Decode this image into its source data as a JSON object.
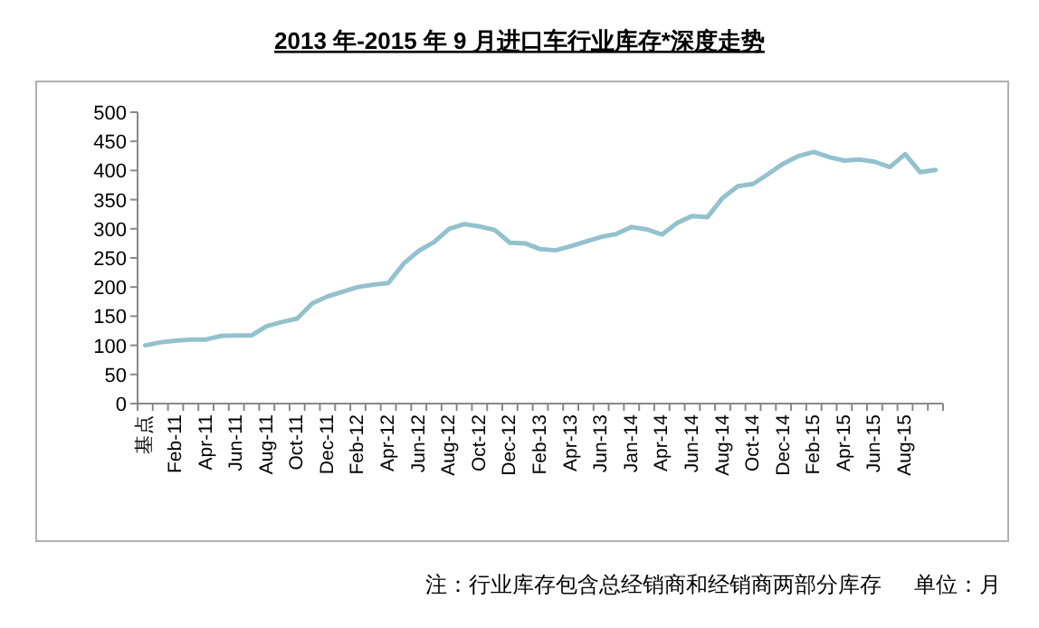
{
  "chart_data": {
    "type": "line",
    "title": "2013 年-2015 年 9 月进口车行业库存*深度走势",
    "categories": [
      "基点",
      null,
      "Feb-11",
      null,
      "Apr-11",
      null,
      "Jun-11",
      null,
      "Aug-11",
      null,
      "Oct-11",
      null,
      "Dec-11",
      null,
      "Feb-12",
      null,
      "Apr-12",
      null,
      "Jun-12",
      null,
      "Aug-12",
      null,
      "Oct-12",
      null,
      "Dec-12",
      null,
      "Feb-13",
      null,
      "Apr-13",
      null,
      "Jun-13",
      null,
      "Jan-14",
      null,
      "Apr-14",
      null,
      "Jun-14",
      null,
      "Aug-14",
      null,
      "Oct-14",
      null,
      "Dec-14",
      null,
      "Feb-15",
      null,
      "Apr-15",
      null,
      "Jun-15",
      null,
      "Aug-15",
      null,
      null
    ],
    "series": [
      {
        "color": "#93c1cc",
        "values": [
          100,
          105,
          108,
          110,
          110,
          116,
          117,
          117,
          133,
          140,
          146,
          172,
          184,
          192,
          200,
          204,
          207,
          240,
          262,
          277,
          300,
          308,
          304,
          298,
          276,
          275,
          265,
          263,
          270,
          278,
          286,
          291,
          303,
          299,
          290,
          310,
          322,
          320,
          353,
          373,
          377,
          394,
          412,
          425,
          432,
          423,
          417,
          419,
          415,
          406,
          428,
          397,
          401
        ]
      }
    ],
    "ylim": [
      0,
      500
    ],
    "yticks": [
      0,
      50,
      100,
      150,
      200,
      250,
      300,
      350,
      400,
      450,
      500
    ],
    "grid": false,
    "annotations": [
      "注：行业库存包含总经销商和经销商两部分库存",
      "单位：月"
    ]
  }
}
